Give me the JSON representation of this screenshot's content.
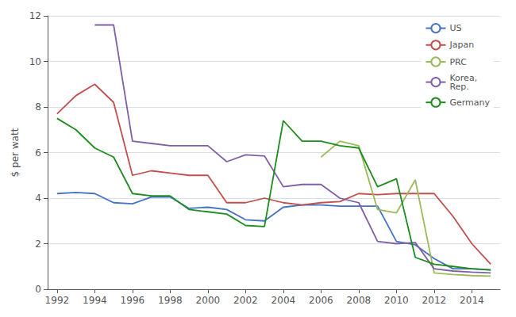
{
  "chart_data": {
    "type": "line",
    "y_label": "$ per watt",
    "xlim": [
      1991.5,
      2015.5
    ],
    "xticks": [
      1992,
      1994,
      1996,
      1998,
      2000,
      2002,
      2004,
      2006,
      2008,
      2010,
      2012,
      2014
    ],
    "ylim": [
      0,
      12
    ],
    "yticks": [
      0,
      2,
      4,
      6,
      8,
      10,
      12
    ],
    "grid": true,
    "legend": "upper right",
    "series": [
      {
        "name": "US",
        "color": "#4472C4",
        "x": [
          1992,
          1993,
          1994,
          1995,
          1996,
          1997,
          1998,
          1999,
          2000,
          2001,
          2002,
          2003,
          2004,
          2005,
          2006,
          2007,
          2008,
          2009,
          2010,
          2011,
          2012,
          2013,
          2014,
          2015
        ],
        "values": [
          4.2,
          4.25,
          4.2,
          3.8,
          3.75,
          4.05,
          4.05,
          3.55,
          3.6,
          3.5,
          3.05,
          3.0,
          3.6,
          3.7,
          3.7,
          3.65,
          3.65,
          3.65,
          2.1,
          1.95,
          1.35,
          0.9,
          0.9,
          0.85
        ]
      },
      {
        "name": "Japan",
        "color": "#C0504D",
        "x": [
          1992,
          1993,
          1994,
          1995,
          1996,
          1997,
          1998,
          1999,
          2000,
          2001,
          2002,
          2003,
          2004,
          2005,
          2006,
          2007,
          2008,
          2009,
          2010,
          2011,
          2012,
          2013,
          2014,
          2015
        ],
        "values": [
          7.7,
          8.5,
          9.0,
          8.2,
          5.0,
          5.2,
          5.1,
          5.0,
          5.0,
          3.8,
          3.8,
          4.0,
          3.8,
          3.7,
          3.8,
          3.85,
          4.2,
          4.15,
          4.2,
          4.2,
          4.2,
          3.2,
          2.0,
          1.1
        ]
      },
      {
        "name": "PRC",
        "color": "#9BBB59",
        "x": [
          2006,
          2007,
          2008,
          2009,
          2010,
          2011,
          2012,
          2013,
          2014,
          2015
        ],
        "values": [
          5.8,
          6.5,
          6.3,
          3.5,
          3.35,
          4.8,
          0.72,
          0.65,
          0.6,
          0.58
        ]
      },
      {
        "name": "Korea,\nRep.",
        "color": "#7F5FA8",
        "x": [
          1994,
          1995,
          1996,
          1997,
          1998,
          1999,
          2000,
          2001,
          2002,
          2003,
          2004,
          2005,
          2006,
          2007,
          2008,
          2009,
          2010,
          2011,
          2012,
          2013,
          2014,
          2015
        ],
        "values": [
          11.6,
          11.6,
          6.5,
          6.4,
          6.3,
          6.3,
          6.3,
          5.6,
          5.9,
          5.85,
          4.5,
          4.6,
          4.6,
          4.0,
          3.8,
          2.1,
          2.0,
          2.05,
          0.9,
          0.8,
          0.75,
          0.72
        ]
      },
      {
        "name": "Germany",
        "color": "#1E8C1E",
        "x": [
          1992,
          1993,
          1994,
          1995,
          1996,
          1997,
          1998,
          1999,
          2000,
          2001,
          2002,
          2003,
          2004,
          2005,
          2006,
          2007,
          2008,
          2009,
          2010,
          2011,
          2012,
          2013,
          2014,
          2015
        ],
        "values": [
          7.5,
          7.0,
          6.2,
          5.8,
          4.2,
          4.1,
          4.1,
          3.5,
          3.4,
          3.3,
          2.8,
          2.75,
          7.4,
          6.5,
          6.5,
          6.3,
          6.2,
          4.5,
          4.85,
          1.4,
          1.1,
          1.0,
          0.9,
          0.85
        ]
      }
    ]
  }
}
